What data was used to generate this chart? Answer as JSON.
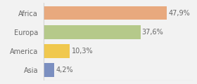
{
  "categories": [
    "Asia",
    "America",
    "Europa",
    "Africa"
  ],
  "values": [
    4.2,
    10.3,
    37.6,
    47.9
  ],
  "bar_colors": [
    "#7b8fc0",
    "#f0c84e",
    "#b5c98a",
    "#e8a97e"
  ],
  "labels": [
    "4,2%",
    "10,3%",
    "37,6%",
    "47,9%"
  ],
  "xlim": [
    0,
    58
  ],
  "background_color": "#f2f2f2",
  "bar_height": 0.72,
  "label_fontsize": 7.0,
  "tick_fontsize": 7.0,
  "text_color": "#666666"
}
